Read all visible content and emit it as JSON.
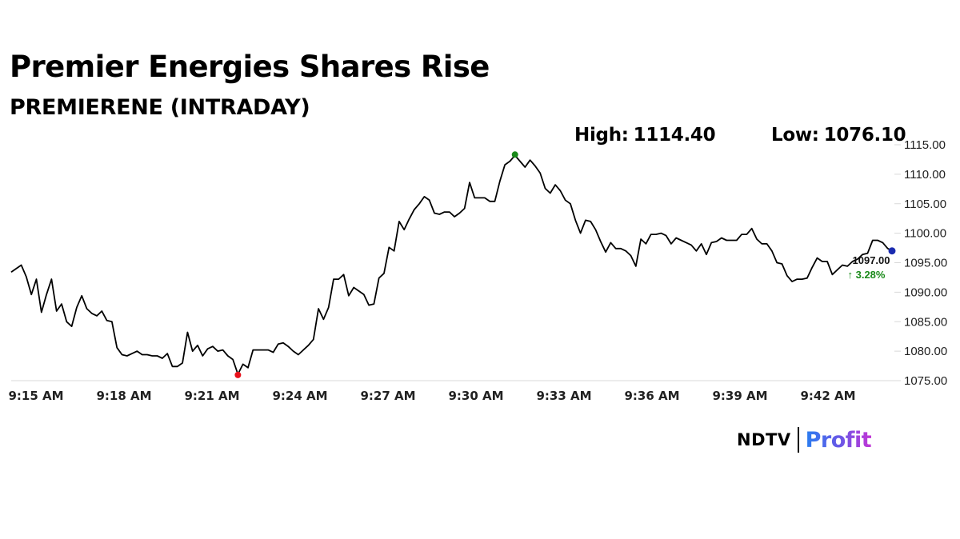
{
  "header": {
    "title": "Premier Energies Shares Rise",
    "subtitle": "PREMIERENE (INTRADAY)"
  },
  "stats": {
    "high_label": "High:",
    "high_value": "1114.40",
    "low_label": "Low:",
    "low_value": "1076.10"
  },
  "last_price": {
    "value": "1097.00",
    "change": "↑ 3.28%",
    "change_color": "#1a8a1a"
  },
  "brand": {
    "ndtv": "NDTV",
    "profit": "Profit"
  },
  "colors": {
    "line": "#000000",
    "high_marker": "#1a8a1a",
    "low_marker": "#e8101a",
    "last_marker": "#1a2bb0"
  },
  "chart_data": {
    "type": "line",
    "title": "Premier Energies Shares Rise",
    "subtitle": "PREMIERENE (INTRADAY)",
    "x_tick_labels": [
      "9:15 AM",
      "9:18 AM",
      "9:21 AM",
      "9:24 AM",
      "9:27 AM",
      "9:30 AM",
      "9:33 AM",
      "9:36 AM",
      "9:39 AM",
      "9:42 AM"
    ],
    "y_tick_labels": [
      "1115.00",
      "1110.00",
      "1105.00",
      "1100.00",
      "1095.00",
      "1090.00",
      "1085.00",
      "1080.00",
      "1075.00"
    ],
    "ylim": [
      1075,
      1115
    ],
    "y_position": "right",
    "grid": false,
    "series": [
      {
        "values": [
          1093.4,
          1094.0,
          1094.6,
          1092.6,
          1089.6,
          1092.2,
          1086.6,
          1089.6,
          1092.2,
          1086.8,
          1088.0,
          1085.0,
          1084.2,
          1087.4,
          1089.4,
          1087.2,
          1086.4,
          1086.0,
          1086.8,
          1085.2,
          1085.0,
          1080.6,
          1079.4,
          1079.2,
          1079.6,
          1080.0,
          1079.4,
          1079.4,
          1079.2,
          1079.2,
          1078.8,
          1079.6,
          1077.4,
          1077.4,
          1078.0,
          1083.2,
          1080.0,
          1081.0,
          1079.2,
          1080.4,
          1080.8,
          1080.0,
          1080.2,
          1079.2,
          1078.6,
          1076.1,
          1077.8,
          1077.2,
          1080.2,
          1080.2,
          1080.2,
          1080.2,
          1079.8,
          1081.2,
          1081.4,
          1080.8,
          1080.0,
          1079.4,
          1080.2,
          1081.0,
          1082.0,
          1087.2,
          1085.4,
          1087.4,
          1092.2,
          1092.2,
          1093.0,
          1089.4,
          1090.8,
          1090.2,
          1089.6,
          1087.8,
          1088.0,
          1092.4,
          1093.2,
          1097.6,
          1097.0,
          1102.0,
          1100.6,
          1102.4,
          1104.0,
          1105.0,
          1106.2,
          1105.6,
          1103.4,
          1103.2,
          1103.6,
          1103.6,
          1102.8,
          1103.4,
          1104.2,
          1108.6,
          1106.0,
          1106.0,
          1106.0,
          1105.4,
          1105.4,
          1108.8,
          1111.6,
          1112.2,
          1113.2,
          1112.2,
          1111.2,
          1112.4,
          1111.4,
          1110.2,
          1107.6,
          1106.8,
          1108.2,
          1107.2,
          1105.6,
          1105.0,
          1102.2,
          1100.0,
          1102.2,
          1102.0,
          1100.6,
          1098.6,
          1096.8,
          1098.4,
          1097.4,
          1097.4,
          1097.0,
          1096.2,
          1094.4,
          1099.0,
          1098.2,
          1099.8,
          1099.8,
          1100.0,
          1099.6,
          1098.2,
          1099.2,
          1098.8,
          1098.4,
          1098.0,
          1097.0,
          1098.2,
          1096.4,
          1098.4,
          1098.6,
          1099.2,
          1098.8,
          1098.8,
          1098.8,
          1099.8,
          1099.8,
          1100.8,
          1099.0,
          1098.2,
          1098.2,
          1097.0,
          1095.0,
          1094.8,
          1092.8,
          1091.8,
          1092.2,
          1092.2,
          1092.4,
          1094.2,
          1095.8,
          1095.2,
          1095.2,
          1093.0,
          1093.8,
          1094.6,
          1094.4,
          1095.2,
          1095.6,
          1096.4,
          1096.6,
          1098.8,
          1098.8,
          1098.4,
          1097.4,
          1097.0
        ]
      }
    ],
    "high": 1114.4,
    "low": 1076.1,
    "last": 1097.0,
    "change_percent": 3.28
  }
}
